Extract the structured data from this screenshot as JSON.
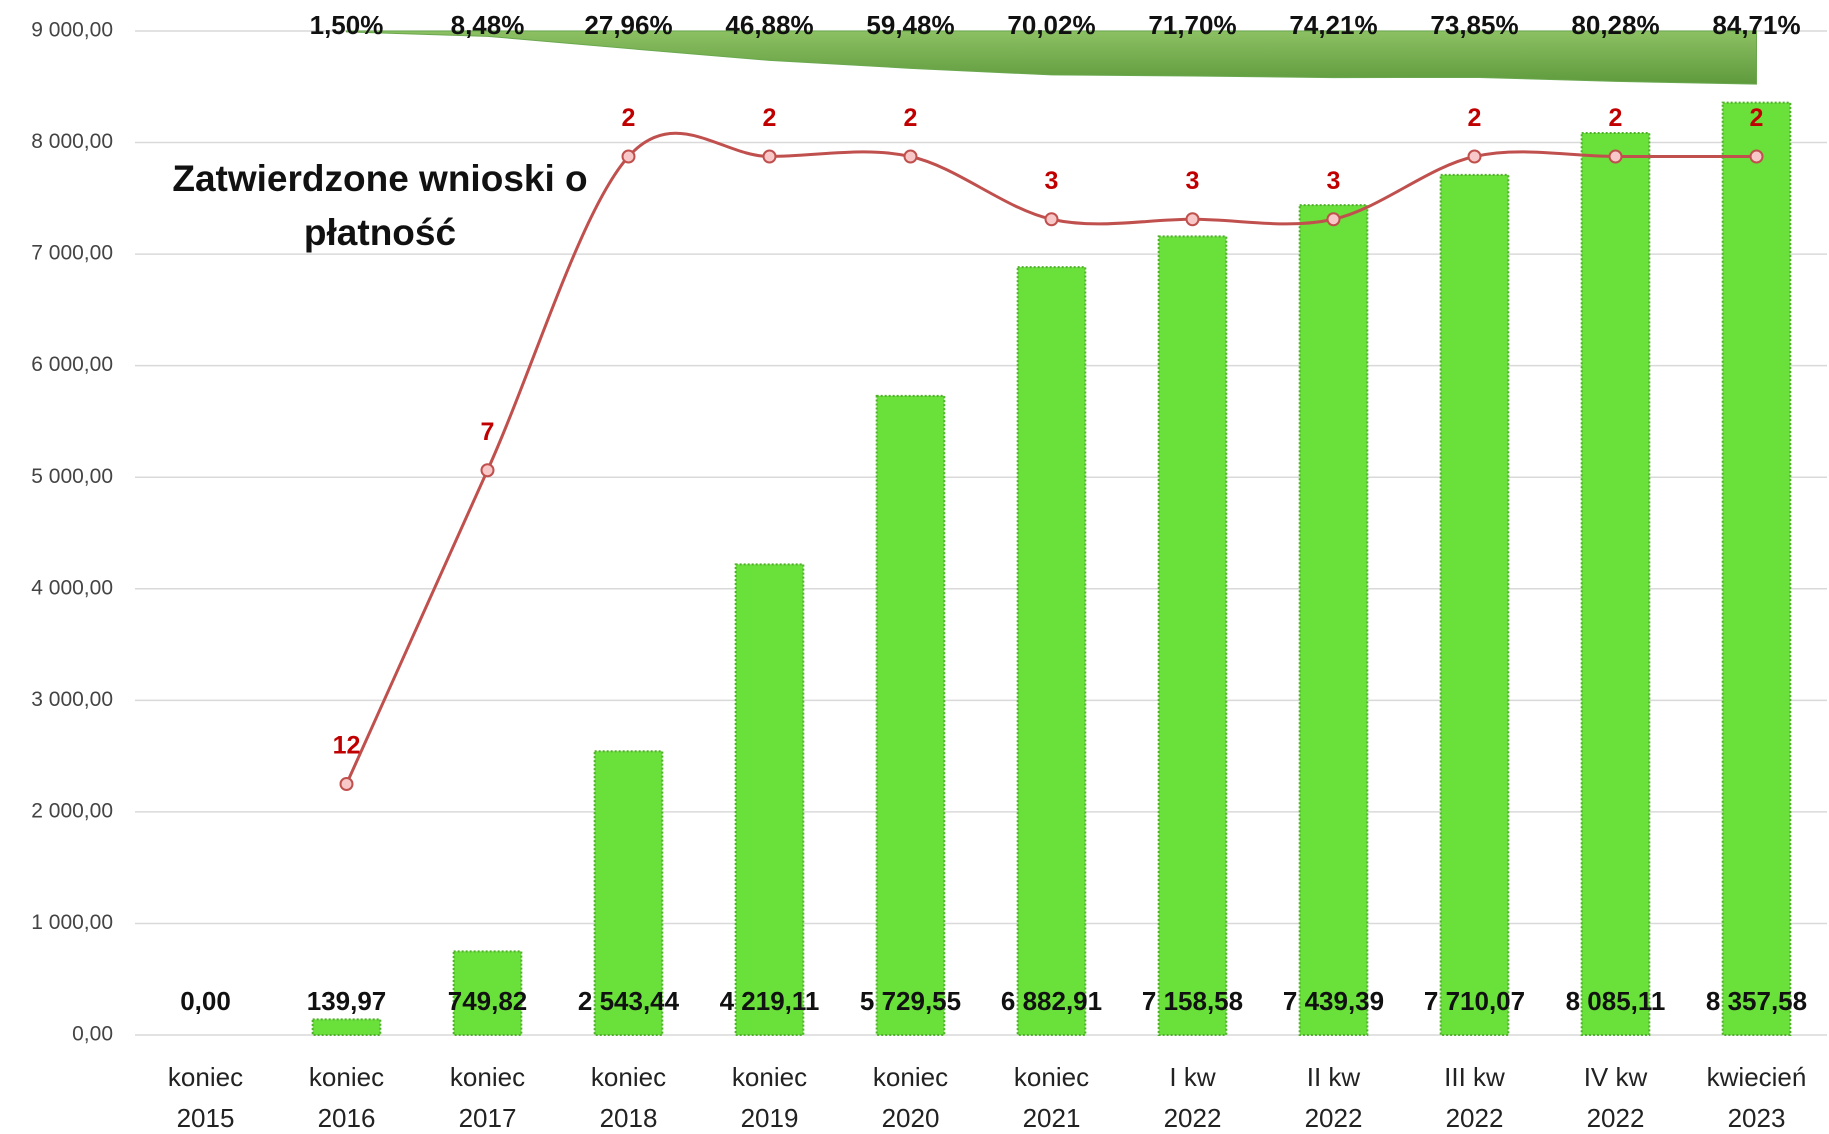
{
  "chart_data": {
    "type": "bar",
    "categories": [
      "koniec 2015",
      "koniec 2016",
      "koniec 2017",
      "koniec 2018",
      "koniec 2019",
      "koniec 2020",
      "koniec 2021",
      "I kw 2022",
      "II kw 2022",
      "III kw 2022",
      "IV kw 2022",
      "kwiecień 2023"
    ],
    "values": [
      0,
      139.97,
      749.82,
      2543.44,
      4219.11,
      5729.55,
      6882.91,
      7158.58,
      7439.39,
      7710.07,
      8085.11,
      8357.58
    ],
    "value_labels": [
      "0,00",
      "139,97",
      "749,82",
      "2 543,44",
      "4 219,11",
      "5 729,55",
      "6 882,91",
      "7 158,58",
      "7 439,39",
      "7 710,07",
      "8 085,11",
      "8 357,58"
    ],
    "color": "#6ae03a",
    "ylim": [
      0,
      9000
    ],
    "yticks": [
      {
        "value": 0,
        "label": "0,00"
      },
      {
        "value": 1000,
        "label": "1 000,00"
      },
      {
        "value": 2000,
        "label": "2 000,00"
      },
      {
        "value": 3000,
        "label": "3 000,00"
      },
      {
        "value": 4000,
        "label": "4 000,00"
      },
      {
        "value": 5000,
        "label": "5 000,00"
      },
      {
        "value": 6000,
        "label": "6 000,00"
      },
      {
        "value": 7000,
        "label": "7 000,00"
      },
      {
        "value": 8000,
        "label": "8 000,00"
      },
      {
        "value": 9000,
        "label": "9 000,00"
      }
    ],
    "grid": true,
    "y2lim": [
      16,
      0
    ],
    "y3lim": [
      1600,
      0
    ],
    "series": [
      {
        "name": "Zatwierdzone wnioski o płatność",
        "type": "line",
        "axis": "y2",
        "color": "#c0504d",
        "label_color": "#c00000",
        "values": [
          null,
          12,
          7,
          2,
          2,
          2,
          3,
          3,
          3,
          2,
          2,
          2
        ]
      },
      {
        "type": "area",
        "axis": "y3",
        "color": "#6aa84f",
        "values": [
          null,
          1.5,
          8.48,
          27.96,
          46.88,
          59.48,
          70.02,
          71.7,
          74.21,
          73.85,
          80.28,
          84.71
        ],
        "value_labels": [
          null,
          "1,50%",
          "8,48%",
          "27,96%",
          "46,88%",
          "59,48%",
          "70,02%",
          "71,70%",
          "74,21%",
          "73,85%",
          "80,28%",
          "84,71%"
        ]
      }
    ]
  }
}
